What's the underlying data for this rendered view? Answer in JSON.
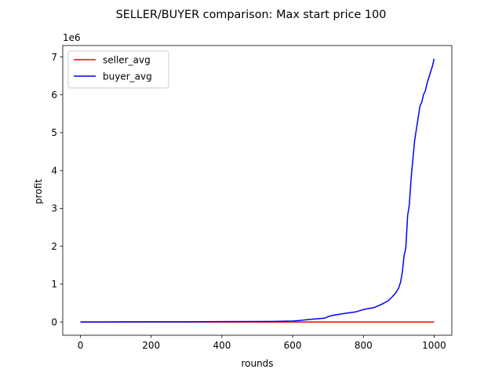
{
  "chart_data": {
    "type": "line",
    "title": "SELLER/BUYER comparison: Max start price 100",
    "xlabel": "rounds",
    "ylabel": "profit",
    "y_scale_label": "1e6",
    "y_scale": 1000000,
    "xlim": [
      -50,
      1050
    ],
    "ylim": [
      -350000,
      7300000
    ],
    "x_ticks": [
      0,
      200,
      400,
      600,
      800,
      1000
    ],
    "y_ticks": [
      0,
      1,
      2,
      3,
      4,
      5,
      6,
      7
    ],
    "grid": false,
    "legend": "top-left",
    "series": [
      {
        "name": "seller_avg",
        "color": "#ff0000",
        "x": [
          0,
          200,
          400,
          600,
          800,
          1000
        ],
        "y": [
          0,
          200,
          400,
          600,
          800,
          1000
        ]
      },
      {
        "name": "buyer_avg",
        "color": "#0000ff",
        "x": [
          0,
          100,
          200,
          300,
          400,
          500,
          550,
          600,
          620,
          650,
          690,
          700,
          710,
          750,
          780,
          800,
          830,
          850,
          870,
          880,
          890,
          900,
          905,
          910,
          915,
          920,
          925,
          930,
          935,
          940,
          945,
          950,
          955,
          960,
          965,
          970,
          975,
          980,
          985,
          990,
          995,
          1000
        ],
        "y": [
          0,
          2000,
          4000,
          6000,
          9000,
          12000,
          15000,
          25000,
          40000,
          70000,
          100000,
          140000,
          170000,
          230000,
          270000,
          330000,
          380000,
          460000,
          560000,
          650000,
          750000,
          900000,
          1050000,
          1300000,
          1750000,
          1950000,
          2800000,
          3100000,
          3800000,
          4300000,
          4800000,
          5100000,
          5400000,
          5700000,
          5800000,
          6000000,
          6100000,
          6300000,
          6450000,
          6600000,
          6750000,
          6950000
        ]
      }
    ]
  }
}
